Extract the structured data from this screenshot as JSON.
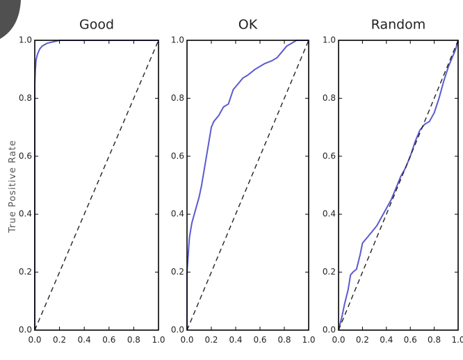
{
  "figure": {
    "ylabel": "True Positive Rate",
    "colors": {
      "roc": "#5a5ad0",
      "chance": "#222222"
    }
  },
  "chart_data": [
    {
      "type": "line",
      "title": "Good",
      "xlabel": "",
      "ylabel": "True Positive Rate",
      "xlim": [
        0,
        1
      ],
      "ylim": [
        0,
        1
      ],
      "xticks": [
        "0.0",
        "0.2",
        "0.4",
        "0.6",
        "0.8",
        "1.0"
      ],
      "yticks": [
        "0.0",
        "0.2",
        "0.4",
        "0.6",
        "0.8",
        "1.0"
      ],
      "grid": false,
      "series": [
        {
          "kind": "roc",
          "x": [
            0,
            0,
            0.005,
            0.01,
            0.02,
            0.04,
            0.06,
            0.1,
            0.15,
            0.2,
            1.0
          ],
          "y": [
            0,
            0.85,
            0.9,
            0.93,
            0.95,
            0.97,
            0.98,
            0.99,
            0.995,
            1.0,
            1.0
          ]
        },
        {
          "kind": "chance",
          "x": [
            0,
            1
          ],
          "y": [
            0,
            1
          ]
        }
      ]
    },
    {
      "type": "line",
      "title": "OK",
      "xlabel": "",
      "ylabel": "",
      "xlim": [
        0,
        1
      ],
      "ylim": [
        0,
        1
      ],
      "xticks": [
        "0.0",
        "0.2",
        "0.4",
        "0.6",
        "0.8",
        "1.0"
      ],
      "yticks": [
        "0.0",
        "0.2",
        "0.4",
        "0.6",
        "0.8",
        "1.0"
      ],
      "grid": false,
      "series": [
        {
          "kind": "roc",
          "x": [
            0,
            0,
            0.02,
            0.04,
            0.06,
            0.08,
            0.1,
            0.12,
            0.14,
            0.16,
            0.18,
            0.2,
            0.22,
            0.26,
            0.3,
            0.34,
            0.38,
            0.42,
            0.46,
            0.5,
            0.56,
            0.6,
            0.64,
            0.7,
            0.74,
            0.78,
            0.82,
            0.86,
            0.9,
            0.94,
            0.97,
            1.0
          ],
          "y": [
            0,
            0.2,
            0.32,
            0.37,
            0.4,
            0.43,
            0.46,
            0.5,
            0.55,
            0.6,
            0.65,
            0.7,
            0.72,
            0.74,
            0.77,
            0.78,
            0.83,
            0.85,
            0.87,
            0.88,
            0.9,
            0.91,
            0.92,
            0.93,
            0.94,
            0.96,
            0.98,
            0.99,
            1.0,
            1.0,
            1.0,
            1.0
          ]
        },
        {
          "kind": "chance",
          "x": [
            0,
            1
          ],
          "y": [
            0,
            1
          ]
        }
      ]
    },
    {
      "type": "line",
      "title": "Random",
      "xlabel": "",
      "ylabel": "",
      "xlim": [
        0,
        1
      ],
      "ylim": [
        0,
        1
      ],
      "xticks": [
        "0.0",
        "0.2",
        "0.4",
        "0.6",
        "0.8",
        "1.0"
      ],
      "yticks": [
        "0.0",
        "0.2",
        "0.4",
        "0.6",
        "0.8",
        "1.0"
      ],
      "grid": false,
      "series": [
        {
          "kind": "roc",
          "x": [
            0,
            0.03,
            0.05,
            0.08,
            0.1,
            0.12,
            0.15,
            0.18,
            0.2,
            0.24,
            0.28,
            0.32,
            0.36,
            0.4,
            0.44,
            0.48,
            0.52,
            0.56,
            0.6,
            0.64,
            0.68,
            0.72,
            0.76,
            0.8,
            0.84,
            0.88,
            0.92,
            0.95,
            0.98,
            1.0
          ],
          "y": [
            0,
            0.05,
            0.09,
            0.14,
            0.19,
            0.2,
            0.21,
            0.26,
            0.3,
            0.32,
            0.34,
            0.36,
            0.39,
            0.42,
            0.45,
            0.49,
            0.53,
            0.56,
            0.6,
            0.65,
            0.69,
            0.71,
            0.72,
            0.75,
            0.8,
            0.86,
            0.91,
            0.94,
            0.97,
            1.0
          ]
        },
        {
          "kind": "chance",
          "x": [
            0,
            1
          ],
          "y": [
            0,
            1
          ]
        }
      ]
    }
  ]
}
